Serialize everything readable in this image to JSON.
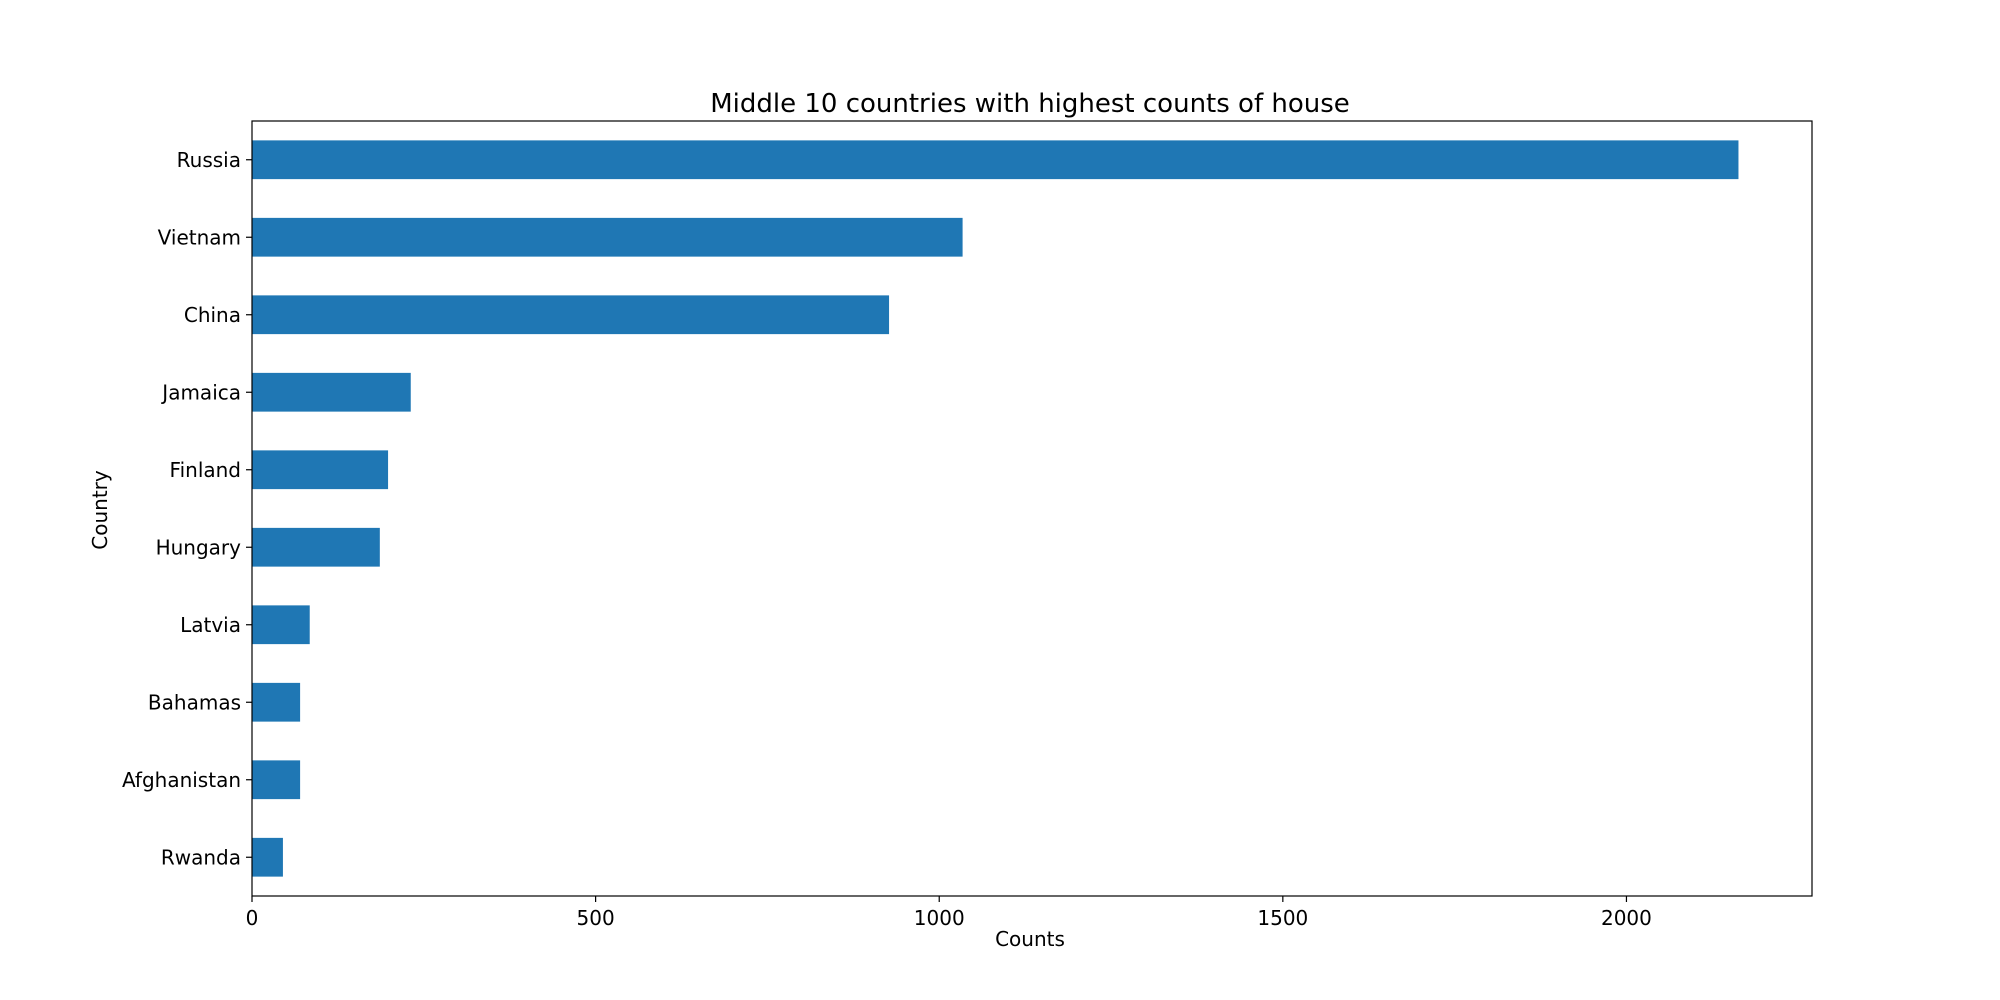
{
  "chart_data": {
    "type": "bar",
    "orientation": "horizontal",
    "title": "Middle 10 countries with highest counts of house",
    "xlabel": "Counts",
    "ylabel": "Country",
    "categories": [
      "Russia",
      "Vietnam",
      "China",
      "Jamaica",
      "Finland",
      "Hungary",
      "Latvia",
      "Bahamas",
      "Afghanistan",
      "Rwanda"
    ],
    "values": [
      2163,
      1034,
      927,
      231,
      198,
      186,
      84,
      70,
      70,
      45
    ],
    "xlim": [
      0,
      2270
    ],
    "xticks": [
      0,
      500,
      1000,
      1500,
      2000
    ],
    "grid": false,
    "bar_color": "#1f77b4"
  }
}
